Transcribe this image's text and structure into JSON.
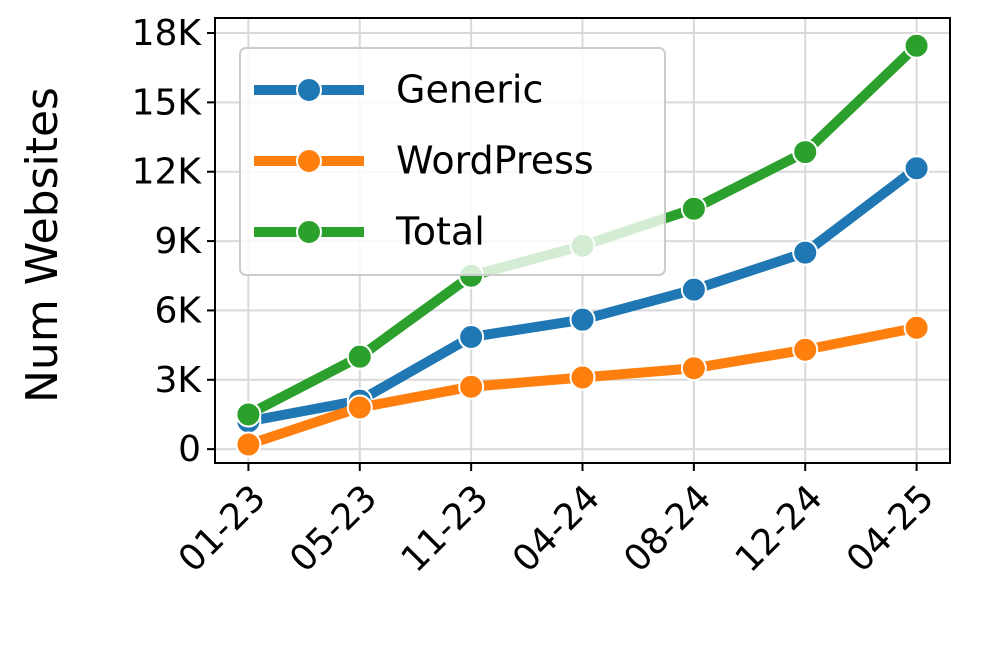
{
  "chart_data": {
    "type": "line",
    "ylabel": "Num Websites",
    "categories": [
      "01-23",
      "05-23",
      "11-23",
      "04-24",
      "08-24",
      "12-24",
      "04-25"
    ],
    "series": [
      {
        "name": "Generic",
        "color": "#1f77b4",
        "values": [
          1200,
          2100,
          4850,
          5600,
          6900,
          8500,
          12150
        ]
      },
      {
        "name": "WordPress",
        "color": "#ff7f0e",
        "values": [
          200,
          1800,
          2700,
          3100,
          3500,
          4300,
          5250
        ]
      },
      {
        "name": "Total",
        "color": "#2ca02c",
        "values": [
          1500,
          4000,
          7500,
          8800,
          10400,
          12850,
          17450
        ]
      }
    ],
    "ylim": [
      -600,
      18650
    ],
    "yticks": [
      0,
      {
        "value": 3000,
        "label": "3K"
      },
      {
        "value": 6000,
        "label": "6K"
      },
      {
        "value": 9000,
        "label": "9K"
      },
      {
        "value": 12000,
        "label": "12K"
      },
      {
        "value": 15000,
        "label": "15K"
      },
      {
        "value": 18000,
        "label": "18K"
      }
    ],
    "grid": true,
    "legend": "upper left"
  }
}
